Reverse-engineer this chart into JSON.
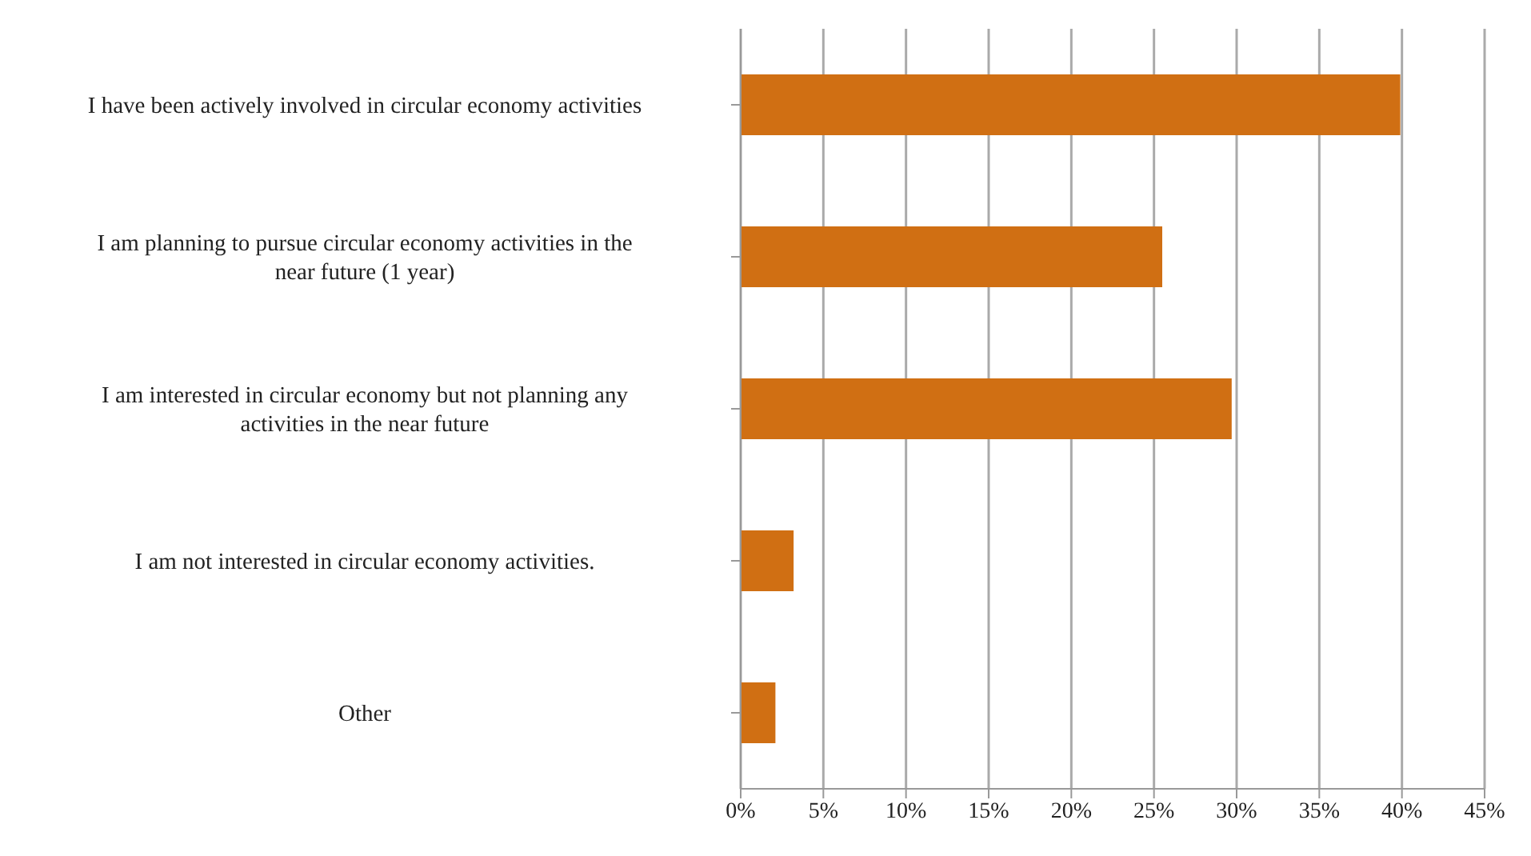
{
  "chart_data": {
    "type": "bar",
    "orientation": "horizontal",
    "categories": [
      "I have been actively involved in circular economy activities",
      "I am planning to pursue circular economy activities in the near future (1 year)",
      "I am interested in circular economy but not planning any activities in the near future",
      "I am not interested in circular economy activities.",
      "Other"
    ],
    "values": [
      39.9,
      25.5,
      29.7,
      3.2,
      2.1
    ],
    "color": "#d06f13",
    "xlim": [
      0,
      45
    ],
    "xticks": [
      {
        "value": 0,
        "label": "0%"
      },
      {
        "value": 5,
        "label": "5%"
      },
      {
        "value": 10,
        "label": "10%"
      },
      {
        "value": 15,
        "label": "15%"
      },
      {
        "value": 20,
        "label": "20%"
      },
      {
        "value": 25,
        "label": "25%"
      },
      {
        "value": 30,
        "label": "30%"
      },
      {
        "value": 35,
        "label": "35%"
      },
      {
        "value": 40,
        "label": "40%"
      },
      {
        "value": 45,
        "label": "45%"
      }
    ],
    "grid": "x"
  }
}
